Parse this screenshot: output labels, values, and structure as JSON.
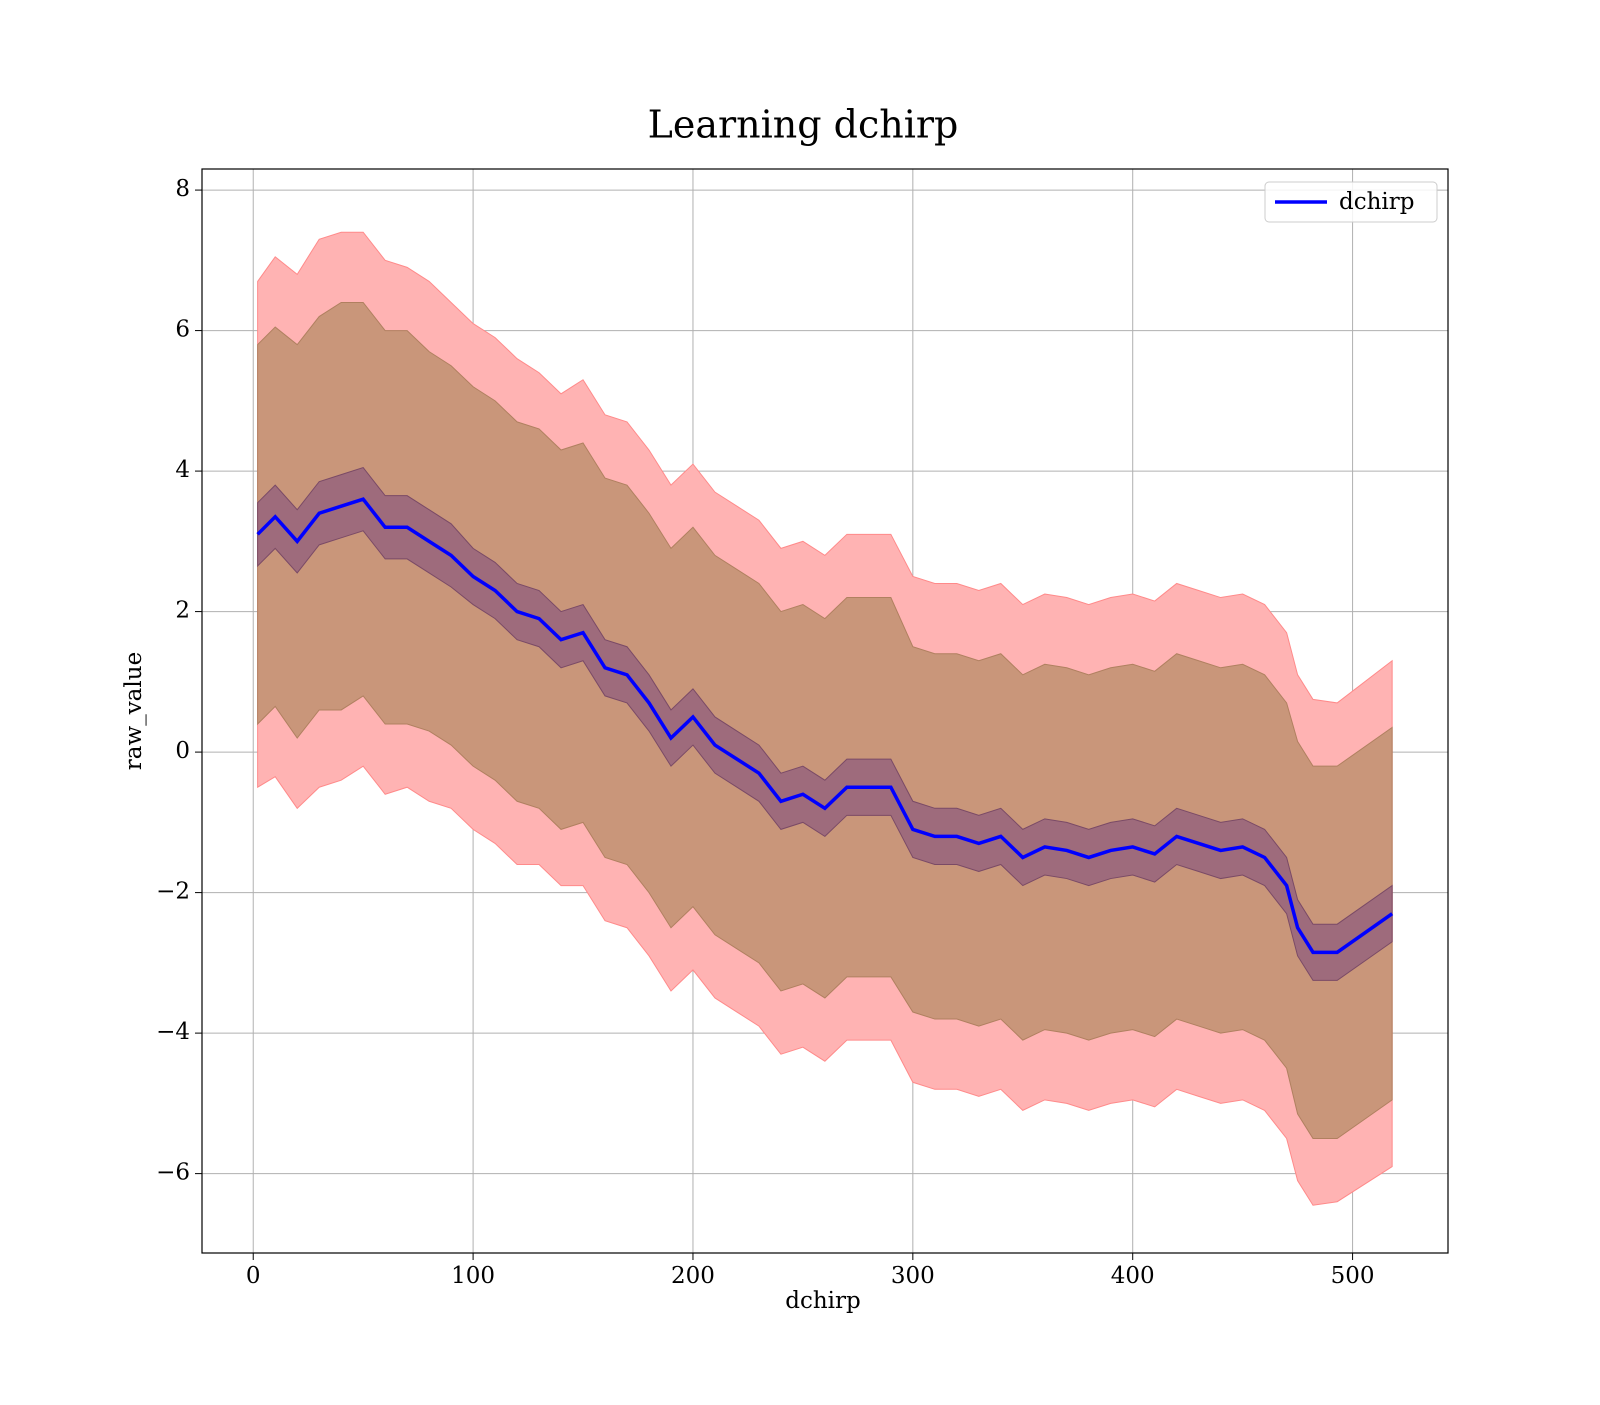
{
  "chart_data": {
    "type": "line",
    "title": "Learning dchirp",
    "xlabel": "dchirp",
    "ylabel": "raw_value",
    "x": [
      2,
      10,
      20,
      30,
      40,
      50,
      60,
      70,
      80,
      90,
      100,
      110,
      120,
      130,
      140,
      150,
      160,
      170,
      180,
      190,
      200,
      210,
      220,
      230,
      240,
      250,
      260,
      270,
      280,
      290,
      300,
      310,
      320,
      330,
      340,
      350,
      360,
      370,
      380,
      390,
      400,
      410,
      420,
      430,
      440,
      450,
      460,
      470,
      475,
      482,
      493,
      518
    ],
    "series": [
      {
        "name": "dchirp",
        "color": "#0000ff",
        "values": [
          3.1,
          3.35,
          3.0,
          3.4,
          3.5,
          3.6,
          3.2,
          3.2,
          3.0,
          2.8,
          2.5,
          2.3,
          2.0,
          1.9,
          1.6,
          1.7,
          1.2,
          1.1,
          0.7,
          0.2,
          0.5,
          0.1,
          -0.1,
          -0.3,
          -0.7,
          -0.6,
          -0.8,
          -0.5,
          -0.5,
          -0.5,
          -1.1,
          -1.2,
          -1.2,
          -1.3,
          -1.2,
          -1.5,
          -1.35,
          -1.4,
          -1.5,
          -1.4,
          -1.35,
          -1.45,
          -1.2,
          -1.3,
          -1.4,
          -1.35,
          -1.5,
          -1.9,
          -2.5,
          -2.85,
          -2.85,
          -2.3
        ]
      }
    ],
    "bands": [
      {
        "color": "#ffb3b3",
        "edge": "#ff8a8a",
        "errors": [
          3.6,
          3.7,
          3.8,
          3.9,
          3.9,
          3.8,
          3.8,
          3.7,
          3.7,
          3.6,
          3.6,
          3.6,
          3.6,
          3.5,
          3.5,
          3.6,
          3.6,
          3.6,
          3.6,
          3.6,
          3.6,
          3.6,
          3.6,
          3.6,
          3.6,
          3.6,
          3.6,
          3.6,
          3.6,
          3.6,
          3.6,
          3.6,
          3.6,
          3.6,
          3.6,
          3.6,
          3.6,
          3.6,
          3.6,
          3.6,
          3.6,
          3.6,
          3.6,
          3.6,
          3.6,
          3.6,
          3.6,
          3.6,
          3.6,
          3.6,
          3.55,
          3.6
        ]
      },
      {
        "color": "#c9967a",
        "edge": "#b08060",
        "errors": [
          2.7,
          2.7,
          2.8,
          2.8,
          2.9,
          2.8,
          2.8,
          2.8,
          2.7,
          2.7,
          2.7,
          2.7,
          2.7,
          2.7,
          2.7,
          2.7,
          2.7,
          2.7,
          2.7,
          2.7,
          2.7,
          2.7,
          2.7,
          2.7,
          2.7,
          2.7,
          2.7,
          2.7,
          2.7,
          2.7,
          2.6,
          2.6,
          2.6,
          2.6,
          2.6,
          2.6,
          2.6,
          2.6,
          2.6,
          2.6,
          2.6,
          2.6,
          2.6,
          2.6,
          2.6,
          2.6,
          2.6,
          2.6,
          2.65,
          2.65,
          2.65,
          2.65
        ]
      },
      {
        "color": "#9e6b7c",
        "edge": "#7a4a66",
        "errors": [
          0.45,
          0.45,
          0.45,
          0.45,
          0.45,
          0.45,
          0.45,
          0.45,
          0.45,
          0.45,
          0.4,
          0.4,
          0.4,
          0.4,
          0.4,
          0.4,
          0.4,
          0.4,
          0.4,
          0.4,
          0.4,
          0.4,
          0.4,
          0.4,
          0.4,
          0.4,
          0.4,
          0.4,
          0.4,
          0.4,
          0.4,
          0.4,
          0.4,
          0.4,
          0.4,
          0.4,
          0.4,
          0.4,
          0.4,
          0.4,
          0.4,
          0.4,
          0.4,
          0.4,
          0.4,
          0.4,
          0.4,
          0.4,
          0.4,
          0.4,
          0.4,
          0.4
        ]
      }
    ],
    "xlim": [
      -23.3,
      543.4
    ],
    "ylim": [
      -7.13,
      8.3
    ],
    "xticks": [
      0,
      100,
      200,
      300,
      400,
      500
    ],
    "yticks": [
      {
        "value": -6,
        "label": "−6"
      },
      {
        "value": -4,
        "label": "−4"
      },
      {
        "value": -2,
        "label": "−2"
      },
      0,
      2,
      4,
      6,
      8
    ],
    "grid": true,
    "legend": "upper right"
  }
}
